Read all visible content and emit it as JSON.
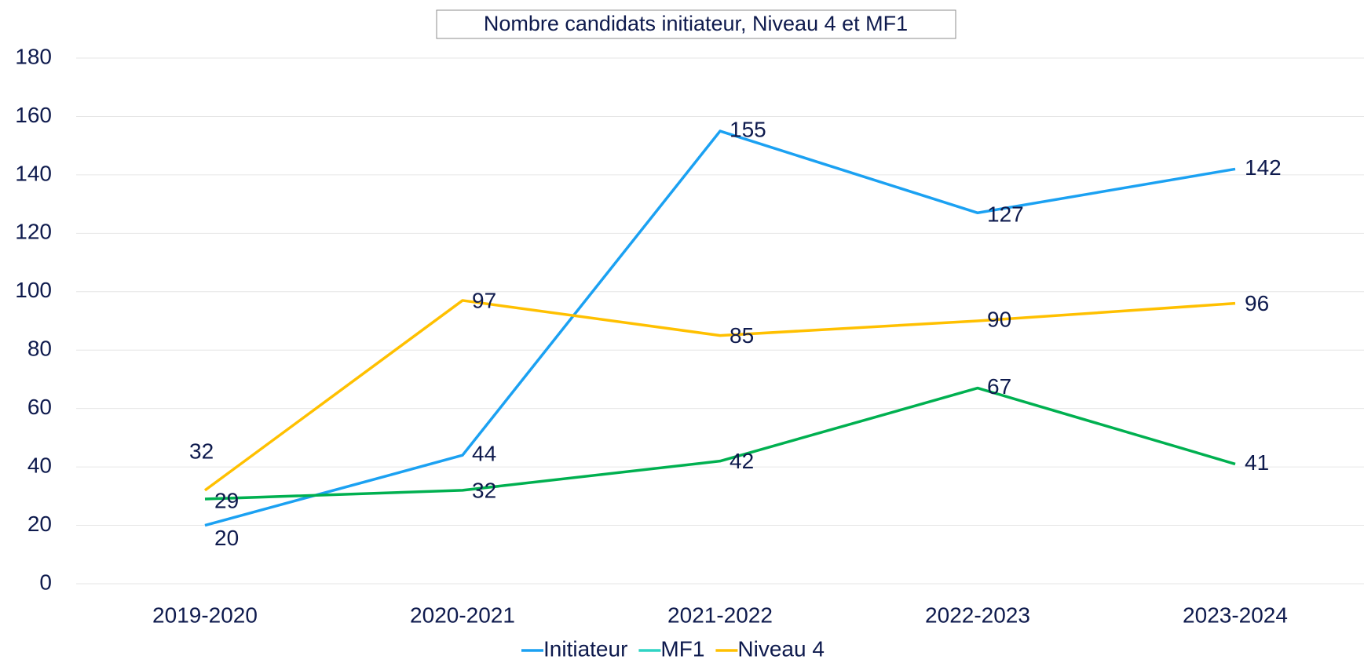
{
  "chart_data": {
    "type": "line",
    "title": "Nombre candidats initiateur, Niveau 4 et MF1",
    "categories": [
      "2019-2020",
      "2020-2021",
      "2021-2022",
      "2022-2023",
      "2023-2024"
    ],
    "series": [
      {
        "name": "Initiateur",
        "color": "#1ba1f2",
        "values": [
          20,
          44,
          155,
          127,
          142
        ]
      },
      {
        "name": "MF1",
        "color": "#00b050",
        "legend_color": "#2fd4c4",
        "values": [
          29,
          32,
          42,
          67,
          41
        ]
      },
      {
        "name": "Niveau 4",
        "color": "#ffc000",
        "values": [
          32,
          97,
          85,
          90,
          96
        ]
      }
    ],
    "ylim": [
      0,
      180
    ],
    "yticks": [
      0,
      20,
      40,
      60,
      80,
      100,
      120,
      140,
      160,
      180
    ],
    "grid": true,
    "legend": "bottom"
  }
}
